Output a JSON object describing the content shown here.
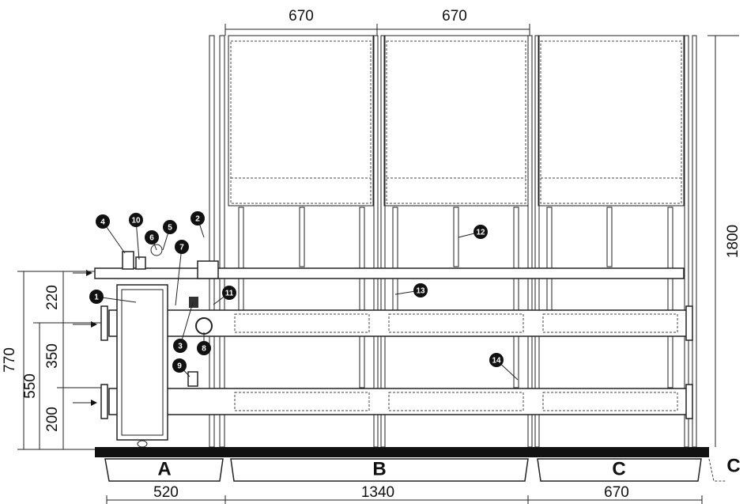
{
  "dimensions": {
    "top": [
      670,
      670
    ],
    "right": 1800,
    "left": [
      770,
      550,
      220,
      350,
      200
    ],
    "bottom": [
      520,
      1340,
      670
    ]
  },
  "sections": [
    "A",
    "B",
    "C",
    "C"
  ],
  "callouts": [
    1,
    2,
    3,
    4,
    5,
    6,
    7,
    8,
    9,
    10,
    11,
    12,
    13,
    14
  ]
}
